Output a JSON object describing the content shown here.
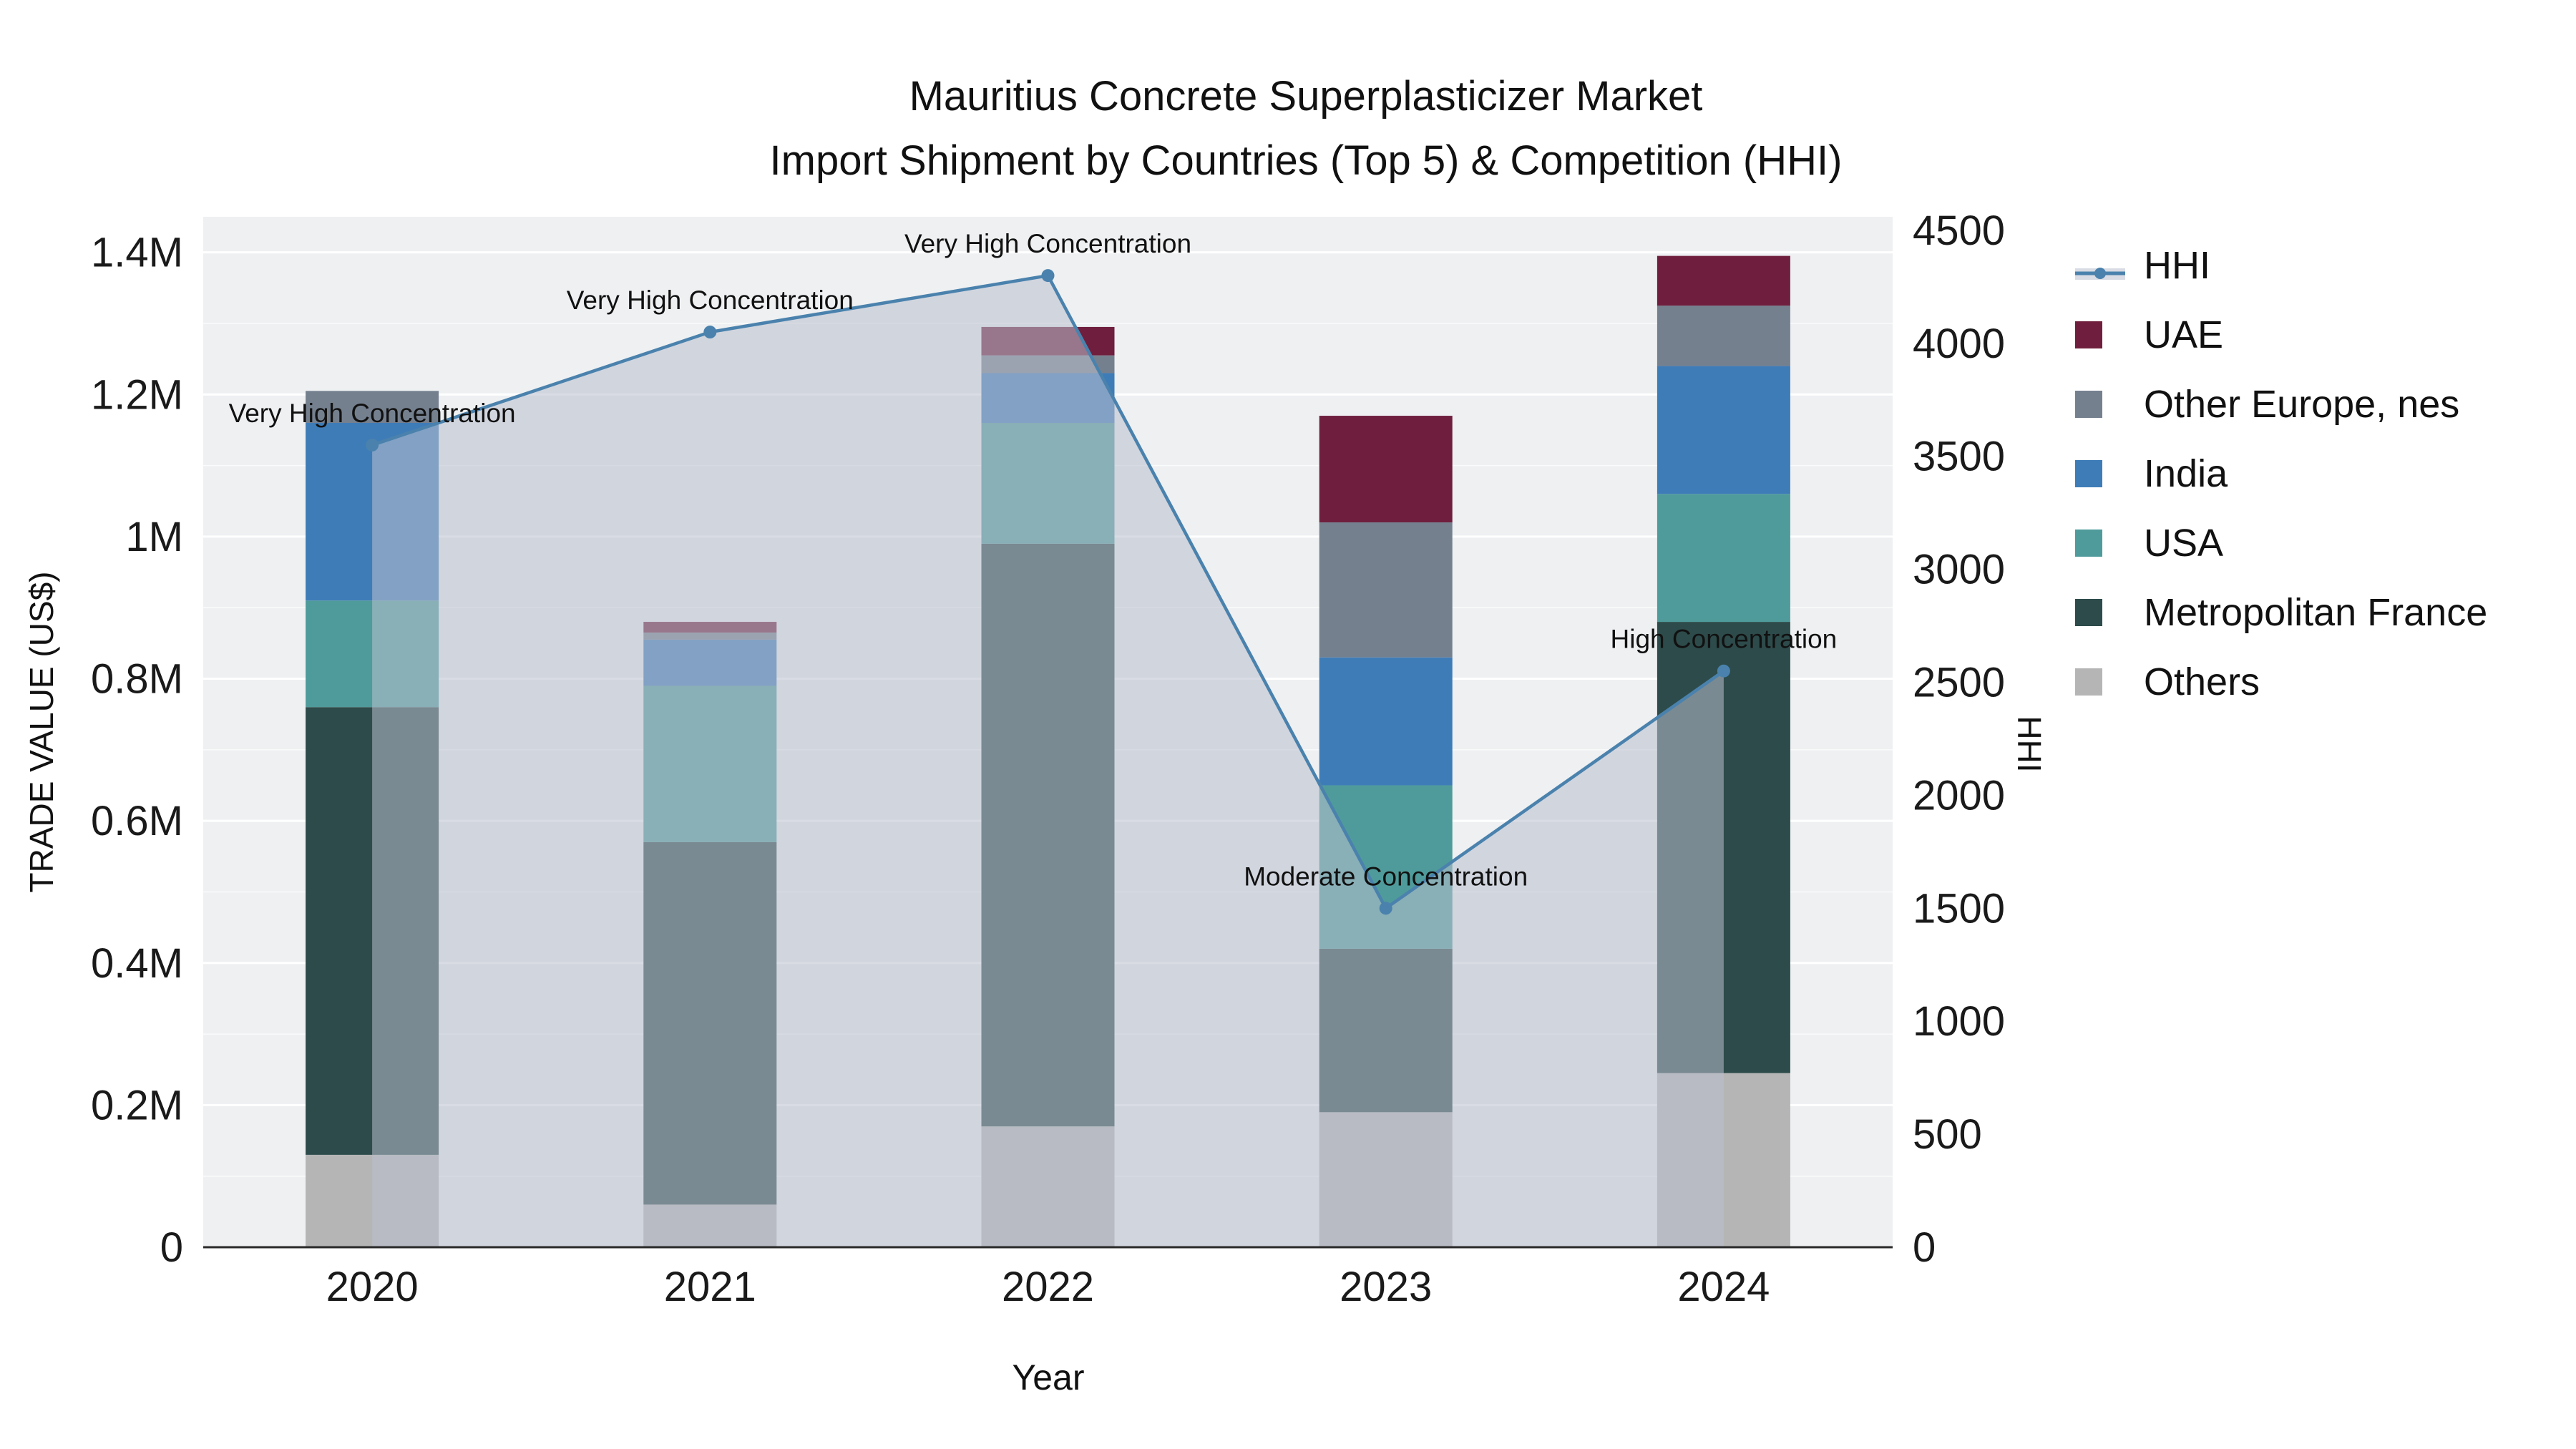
{
  "chart_data": {
    "type": "bar",
    "subtype": "stacked-bar-with-line",
    "title_lines": [
      "Mauritius Concrete Superplasticizer Market",
      "Import Shipment by Countries (Top 5) & Competition (HHI)"
    ],
    "xlabel": "Year",
    "ylabel_left": "TRADE VALUE (US$)",
    "ylabel_right": "HHI",
    "categories": [
      "2020",
      "2021",
      "2022",
      "2023",
      "2024"
    ],
    "bar_series": [
      {
        "name": "Others",
        "color": "#b5b5b5",
        "values": [
          130000,
          60000,
          170000,
          190000,
          245000
        ]
      },
      {
        "name": "Metropolitan France",
        "color": "#2d4b4a",
        "values": [
          630000,
          510000,
          820000,
          230000,
          635000
        ]
      },
      {
        "name": "USA",
        "color": "#4f9b9b",
        "values": [
          150000,
          220000,
          170000,
          230000,
          180000
        ]
      },
      {
        "name": "India",
        "color": "#3e7cb8",
        "values": [
          250000,
          65000,
          70000,
          180000,
          180000
        ]
      },
      {
        "name": "Other Europe, nes",
        "color": "#75808f",
        "values": [
          45000,
          10000,
          25000,
          190000,
          85000
        ]
      },
      {
        "name": "UAE",
        "color": "#6f1f3d",
        "values": [
          0,
          15000,
          40000,
          150000,
          70000
        ]
      }
    ],
    "line_series": {
      "name": "HHI",
      "color": "#4a82ad",
      "values": [
        3550,
        4050,
        4300,
        1500,
        2550
      ],
      "fill_color": "#b9c0cd",
      "fill_opacity": 0.55
    },
    "annotations": [
      "Very High Concentration",
      "Very High Concentration",
      "Very High Concentration",
      "Moderate Concentration",
      "High Concentration"
    ],
    "y_left_ticks": [
      {
        "v": 0,
        "label": "0"
      },
      {
        "v": 200000,
        "label": "0.2M"
      },
      {
        "v": 400000,
        "label": "0.4M"
      },
      {
        "v": 600000,
        "label": "0.6M"
      },
      {
        "v": 800000,
        "label": "0.8M"
      },
      {
        "v": 1000000,
        "label": "1M"
      },
      {
        "v": 1200000,
        "label": "1.2M"
      },
      {
        "v": 1400000,
        "label": "1.4M"
      }
    ],
    "y_right_ticks": [
      {
        "v": 0,
        "label": "0"
      },
      {
        "v": 500,
        "label": "500"
      },
      {
        "v": 1000,
        "label": "1000"
      },
      {
        "v": 1500,
        "label": "1500"
      },
      {
        "v": 2000,
        "label": "2000"
      },
      {
        "v": 2500,
        "label": "2500"
      },
      {
        "v": 3000,
        "label": "3000"
      },
      {
        "v": 3500,
        "label": "3500"
      },
      {
        "v": 4000,
        "label": "4000"
      },
      {
        "v": 4500,
        "label": "4500"
      }
    ],
    "axis_ranges": {
      "left": [
        0,
        1450000
      ],
      "right": [
        0,
        4560
      ]
    },
    "plot_bg": "#eef0f2",
    "grid_color": "#ffffff",
    "legend_position": "right"
  }
}
